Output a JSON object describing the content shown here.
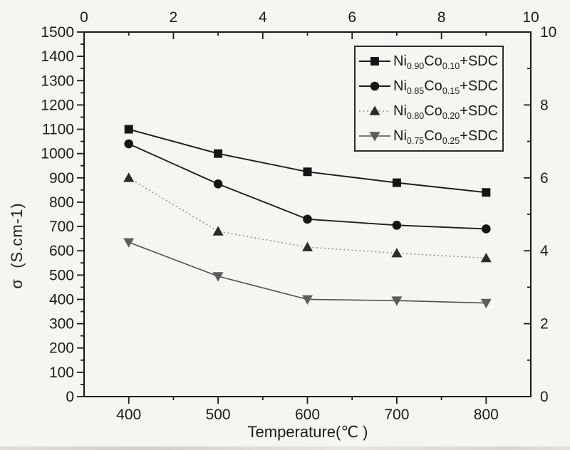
{
  "figure": {
    "background_color": "#f7f5f2",
    "ink_color": "#1c1c1c",
    "frame_color": "#1a1a1a"
  },
  "chart_data": {
    "type": "line",
    "title": "",
    "xlabel": "Temperature(℃ )",
    "ylabel": "σ  (S.cm-1)",
    "x": [
      400,
      500,
      600,
      700,
      800
    ],
    "xlim": [
      350,
      850
    ],
    "ylim": [
      0,
      1500
    ],
    "grid": false,
    "legend_position": "top-right",
    "x_axis": {
      "majors": [
        400,
        500,
        600,
        700,
        800
      ],
      "minors": [
        450,
        550,
        650,
        750
      ]
    },
    "y_axis": {
      "min": 0,
      "max": 1500,
      "major_step": 100,
      "minor_step": 50
    },
    "top_axis": {
      "min": 0,
      "max": 10,
      "major_step": 2,
      "minor_step": 1
    },
    "right_axis": {
      "min": 0,
      "max": 10,
      "major_step": 2,
      "minor_step": 1
    },
    "series": [
      {
        "name": "Ni0.90Co0.10+SDC",
        "label_parts": [
          {
            "t": "Ni"
          },
          {
            "t": "0.90",
            "sub": true
          },
          {
            "t": "Co"
          },
          {
            "t": "0.10",
            "sub": true
          },
          {
            "t": "+SDC"
          }
        ],
        "marker": "square",
        "marker_color": "#151515",
        "line_style": "solid",
        "line_color": "#1d1d1d",
        "line_width": 1.9,
        "values": [
          1100,
          1000,
          925,
          880,
          840
        ]
      },
      {
        "name": "Ni0.85Co0.15+SDC",
        "label_parts": [
          {
            "t": "Ni"
          },
          {
            "t": "0.85",
            "sub": true
          },
          {
            "t": "Co"
          },
          {
            "t": "0.15",
            "sub": true
          },
          {
            "t": "+SDC"
          }
        ],
        "marker": "circle",
        "marker_color": "#151515",
        "line_style": "solid",
        "line_color": "#1d1d1d",
        "line_width": 1.9,
        "values": [
          1040,
          875,
          730,
          705,
          690
        ]
      },
      {
        "name": "Ni0.80Co0.20+SDC",
        "label_parts": [
          {
            "t": "Ni"
          },
          {
            "t": "0.80",
            "sub": true
          },
          {
            "t": "Co"
          },
          {
            "t": "0.20",
            "sub": true
          },
          {
            "t": "+SDC"
          }
        ],
        "marker": "triangle-up",
        "marker_color": "#2b2b2b",
        "line_style": "dotted",
        "line_color": "#8f8f8f",
        "line_width": 1.5,
        "values": [
          900,
          680,
          615,
          590,
          570
        ]
      },
      {
        "name": "Ni0.75Co0.25+SDC",
        "label_parts": [
          {
            "t": "Ni"
          },
          {
            "t": "0.75",
            "sub": true
          },
          {
            "t": "Co"
          },
          {
            "t": "0.25",
            "sub": true
          },
          {
            "t": "+SDC"
          }
        ],
        "marker": "triangle-down",
        "marker_color": "#5d5d5d",
        "line_style": "solid",
        "line_color": "#4e4e4e",
        "line_width": 1.6,
        "values": [
          635,
          495,
          400,
          395,
          385
        ]
      }
    ]
  }
}
